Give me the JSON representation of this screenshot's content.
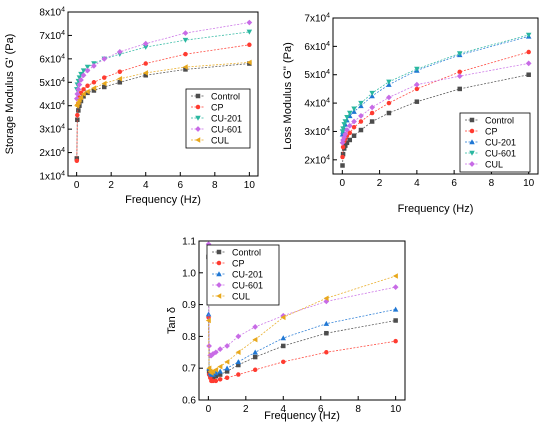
{
  "colors": {
    "Control": "#4d4d4d",
    "CP": "#ff3b30",
    "CU-201-blue": "#1f77d4",
    "CU-201-green": "#2ab7a0",
    "CU-601": "#c86be6",
    "CUL": "#e8a81c"
  },
  "chart_data": [
    {
      "type": "line",
      "title": "",
      "xlabel": "Frequency (Hz)",
      "ylabel": "Storage Modulus G' (Pa)",
      "xlim": [
        -0.5,
        10.5
      ],
      "ylim": [
        10000,
        80000
      ],
      "xticks": [
        0,
        2,
        4,
        6,
        8,
        10
      ],
      "xtick_labels": [
        "0",
        "2",
        "4",
        "6",
        "8",
        "10"
      ],
      "yticks": [
        10000,
        20000,
        30000,
        40000,
        50000,
        60000,
        70000,
        80000
      ],
      "ytick_labels": [
        "1x10^4",
        "2x10^4",
        "3x10^4",
        "4x10^4",
        "5x10^4",
        "6x10^4",
        "7x10^4",
        "8x10^4"
      ],
      "legend_position": "right-middle",
      "series": [
        {
          "name": "Control",
          "marker": "square",
          "color": "#4d4d4d",
          "x": [
            0.01,
            0.04,
            0.1,
            0.16,
            0.25,
            0.4,
            0.63,
            1,
            1.6,
            2.5,
            4,
            6.3,
            10
          ],
          "y": [
            17500,
            34000,
            38000,
            40000,
            42000,
            44000,
            45500,
            46500,
            48000,
            50000,
            53000,
            55500,
            58000
          ]
        },
        {
          "name": "CP",
          "marker": "circle",
          "color": "#ff3b30",
          "x": [
            0.01,
            0.04,
            0.1,
            0.16,
            0.25,
            0.4,
            0.63,
            1,
            1.6,
            2.5,
            4,
            6.3,
            10
          ],
          "y": [
            16500,
            36000,
            41000,
            43500,
            45500,
            47000,
            48500,
            50000,
            52000,
            54500,
            58000,
            62000,
            66000
          ]
        },
        {
          "name": "CU-201",
          "marker": "triangle-down",
          "color": "#2ab7a0",
          "x": [
            0.01,
            0.04,
            0.1,
            0.16,
            0.25,
            0.4,
            0.63,
            1,
            1.6,
            2.5,
            4,
            6.3,
            10
          ],
          "y": [
            47000,
            49000,
            50500,
            52000,
            53500,
            55000,
            56500,
            58000,
            60000,
            62000,
            65000,
            68000,
            71500
          ]
        },
        {
          "name": "CU-601",
          "marker": "diamond",
          "color": "#c86be6",
          "x": [
            0.01,
            0.04,
            0.1,
            0.16,
            0.25,
            0.4,
            0.63,
            1,
            1.6,
            2.5,
            4,
            6.3,
            10
          ],
          "y": [
            43000,
            45000,
            47000,
            49000,
            51000,
            53000,
            55000,
            57000,
            60000,
            63000,
            66500,
            71000,
            75500
          ]
        },
        {
          "name": "CUL",
          "marker": "triangle-left",
          "color": "#e8a81c",
          "x": [
            0.01,
            0.04,
            0.1,
            0.16,
            0.25,
            0.4,
            0.63,
            1,
            1.6,
            2.5,
            4,
            6.3,
            10
          ],
          "y": [
            40000,
            40500,
            41500,
            42500,
            43500,
            45000,
            46000,
            47500,
            49500,
            51500,
            54000,
            56500,
            58500
          ]
        }
      ]
    },
    {
      "type": "line",
      "title": "",
      "xlabel": "Frequency (Hz)",
      "ylabel": "Loss Modulus G'' (Pa)",
      "xlim": [
        -0.5,
        10.5
      ],
      "ylim": [
        15000,
        70000
      ],
      "xticks": [
        0,
        2,
        4,
        6,
        8,
        10
      ],
      "xtick_labels": [
        "0",
        "2",
        "4",
        "6",
        "8",
        "10"
      ],
      "yticks": [
        20000,
        30000,
        40000,
        50000,
        60000,
        70000
      ],
      "ytick_labels": [
        "2x10^4",
        "3x10^4",
        "4x10^4",
        "5x10^4",
        "6x10^4",
        "7x10^4"
      ],
      "legend_position": "bottom-right",
      "series": [
        {
          "name": "Control",
          "marker": "square",
          "color": "#4d4d4d",
          "x": [
            0.01,
            0.04,
            0.1,
            0.16,
            0.25,
            0.4,
            0.63,
            1,
            1.6,
            2.5,
            4,
            6.3,
            10
          ],
          "y": [
            18000,
            22000,
            24000,
            25000,
            26000,
            27000,
            28500,
            30500,
            33500,
            36500,
            40500,
            45000,
            50000
          ]
        },
        {
          "name": "CP",
          "marker": "circle",
          "color": "#ff3b30",
          "x": [
            0.01,
            0.04,
            0.1,
            0.16,
            0.25,
            0.4,
            0.63,
            1,
            1.6,
            2.5,
            4,
            6.3,
            10
          ],
          "y": [
            21000,
            24500,
            26500,
            27500,
            28500,
            29500,
            31500,
            33500,
            36500,
            40000,
            45000,
            51000,
            58000
          ]
        },
        {
          "name": "CU-201",
          "marker": "triangle-up",
          "color": "#1f77d4",
          "x": [
            0.01,
            0.04,
            0.1,
            0.16,
            0.25,
            0.4,
            0.63,
            1,
            1.6,
            2.5,
            4,
            6.3,
            10
          ],
          "y": [
            29000,
            30000,
            31000,
            32500,
            34000,
            35500,
            37000,
            39000,
            42500,
            46500,
            51500,
            57000,
            63500
          ]
        },
        {
          "name": "CU-601",
          "marker": "triangle-down",
          "color": "#2ab7a0",
          "x": [
            0.01,
            0.04,
            0.1,
            0.16,
            0.25,
            0.4,
            0.63,
            1,
            1.6,
            2.5,
            4,
            6.3,
            10
          ],
          "y": [
            30000,
            31000,
            32500,
            33500,
            35000,
            36500,
            38000,
            40000,
            43500,
            47500,
            52000,
            57500,
            64000
          ]
        },
        {
          "name": "CUL",
          "marker": "diamond",
          "color": "#c86be6",
          "x": [
            0.01,
            0.04,
            0.1,
            0.16,
            0.25,
            0.4,
            0.63,
            1,
            1.6,
            2.5,
            4,
            6.3,
            10
          ],
          "y": [
            26000,
            27000,
            28000,
            29000,
            30500,
            32000,
            33500,
            35500,
            38500,
            42000,
            46500,
            49500,
            54000
          ]
        }
      ]
    },
    {
      "type": "line",
      "title": "",
      "xlabel": "Frequency (Hz)",
      "ylabel": "Tan δ",
      "xlim": [
        -0.5,
        10.5
      ],
      "ylim": [
        0.6,
        1.1
      ],
      "xticks": [
        0,
        2,
        4,
        6,
        8,
        10
      ],
      "xtick_labels": [
        "0",
        "2",
        "4",
        "6",
        "8",
        "10"
      ],
      "yticks": [
        0.6,
        0.7,
        0.8,
        0.9,
        1.0,
        1.1
      ],
      "ytick_labels": [
        "0.6",
        "0.7",
        "0.8",
        "0.9",
        "1.0",
        "1.1"
      ],
      "legend_position": "top-left",
      "series": [
        {
          "name": "Control",
          "marker": "square",
          "color": "#4d4d4d",
          "x": [
            0.01,
            0.04,
            0.1,
            0.16,
            0.25,
            0.4,
            0.63,
            1,
            1.6,
            2.5,
            4,
            6.3,
            10
          ],
          "y": [
            1.05,
            0.69,
            0.68,
            0.675,
            0.67,
            0.675,
            0.68,
            0.69,
            0.71,
            0.735,
            0.77,
            0.81,
            0.85
          ]
        },
        {
          "name": "CP",
          "marker": "circle",
          "color": "#ff3b30",
          "x": [
            0.01,
            0.04,
            0.1,
            0.16,
            0.25,
            0.4,
            0.63,
            1,
            1.6,
            2.5,
            4,
            6.3,
            10
          ],
          "y": [
            0.86,
            0.68,
            0.67,
            0.66,
            0.66,
            0.66,
            0.665,
            0.67,
            0.68,
            0.695,
            0.72,
            0.75,
            0.785
          ]
        },
        {
          "name": "CU-201",
          "marker": "triangle-up",
          "color": "#1f77d4",
          "x": [
            0.01,
            0.04,
            0.1,
            0.16,
            0.25,
            0.4,
            0.63,
            1,
            1.6,
            2.5,
            4,
            6.3,
            10
          ],
          "y": [
            0.87,
            0.7,
            0.685,
            0.68,
            0.68,
            0.685,
            0.69,
            0.7,
            0.72,
            0.75,
            0.795,
            0.84,
            0.885
          ]
        },
        {
          "name": "CU-601",
          "marker": "diamond",
          "color": "#c86be6",
          "x": [
            0.01,
            0.04,
            0.1,
            0.16,
            0.25,
            0.4,
            0.63,
            1,
            1.6,
            2.5,
            4,
            6.3,
            10
          ],
          "y": [
            1.09,
            0.77,
            0.74,
            0.74,
            0.745,
            0.75,
            0.76,
            0.77,
            0.8,
            0.83,
            0.865,
            0.91,
            0.955
          ]
        },
        {
          "name": "CUL",
          "marker": "triangle-left",
          "color": "#e8a81c",
          "x": [
            0.01,
            0.04,
            0.1,
            0.16,
            0.25,
            0.4,
            0.63,
            1,
            1.6,
            2.5,
            4,
            6.3,
            10
          ],
          "y": [
            0.85,
            0.7,
            0.69,
            0.685,
            0.69,
            0.695,
            0.705,
            0.72,
            0.75,
            0.79,
            0.86,
            0.92,
            0.99
          ]
        }
      ]
    }
  ]
}
